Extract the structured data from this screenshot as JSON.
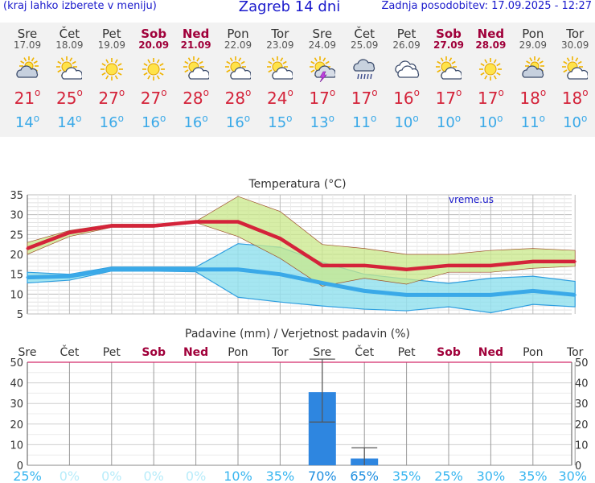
{
  "header": {
    "left_note": "(kraj lahko izberete v meniju)",
    "title": "Zagreb 14 dni",
    "updated": "Zadnja posodobitev: 17.09.2025 - 12:27"
  },
  "days": [
    {
      "name": "Sre",
      "date": "17.09",
      "weekend": false,
      "icon": "partly-cloudy-icon",
      "tmax": "21",
      "tmin": "14"
    },
    {
      "name": "Čet",
      "date": "18.09",
      "weekend": false,
      "icon": "sun-cloud-icon",
      "tmax": "25",
      "tmin": "14"
    },
    {
      "name": "Pet",
      "date": "19.09",
      "weekend": false,
      "icon": "sun-icon",
      "tmax": "27",
      "tmin": "16"
    },
    {
      "name": "Sob",
      "date": "20.09",
      "weekend": true,
      "icon": "sun-icon",
      "tmax": "27",
      "tmin": "16"
    },
    {
      "name": "Ned",
      "date": "21.09",
      "weekend": true,
      "icon": "sun-cloud-icon",
      "tmax": "28",
      "tmin": "16"
    },
    {
      "name": "Pon",
      "date": "22.09",
      "weekend": false,
      "icon": "sun-cloud-icon",
      "tmax": "28",
      "tmin": "16"
    },
    {
      "name": "Tor",
      "date": "23.09",
      "weekend": false,
      "icon": "sun-cloud-icon",
      "tmax": "24",
      "tmin": "15"
    },
    {
      "name": "Sre",
      "date": "24.09",
      "weekend": false,
      "icon": "sun-thunder-icon",
      "tmax": "17",
      "tmin": "13"
    },
    {
      "name": "Čet",
      "date": "25.09",
      "weekend": false,
      "icon": "rain-cloud-icon",
      "tmax": "17",
      "tmin": "11"
    },
    {
      "name": "Pet",
      "date": "26.09",
      "weekend": false,
      "icon": "cloud-icon",
      "tmax": "16",
      "tmin": "10"
    },
    {
      "name": "Sob",
      "date": "27.09",
      "weekend": true,
      "icon": "sun-cloud-icon",
      "tmax": "17",
      "tmin": "10"
    },
    {
      "name": "Ned",
      "date": "28.09",
      "weekend": true,
      "icon": "sun-icon",
      "tmax": "17",
      "tmin": "10"
    },
    {
      "name": "Pon",
      "date": "29.09",
      "weekend": false,
      "icon": "partly-cloudy-icon",
      "tmax": "18",
      "tmin": "11"
    },
    {
      "name": "Tor",
      "date": "30.09",
      "weekend": false,
      "icon": "sun-cloud-icon",
      "tmax": "18",
      "tmin": "10"
    }
  ],
  "colors": {
    "max_temp": "#d4233a",
    "min_temp": "#3aa9e8",
    "weekend": "#a0003a",
    "precip_bar": "#2e86e0",
    "max_band": "#c9e88a",
    "min_band": "#8fe0ee",
    "probability": "#39b6f0",
    "watermark": "#1a1acc"
  },
  "chart_data": [
    {
      "type": "line",
      "title": "Temperatura (°C)",
      "watermark": "vreme.us",
      "categories": [
        "Sre",
        "Čet",
        "Pet",
        "Sob",
        "Ned",
        "Pon",
        "Tor",
        "Sre",
        "Čet",
        "Pet",
        "Sob",
        "Ned",
        "Pon",
        "Tor"
      ],
      "ylim": [
        5,
        35
      ],
      "yticks": [
        5,
        10,
        15,
        20,
        25,
        30,
        35
      ],
      "grid": true,
      "series": [
        {
          "values": [
            21.5,
            25.5,
            27.2,
            27.2,
            28.2,
            28.2,
            24,
            17.2,
            17.2,
            16.2,
            17.2,
            17.2,
            18.2,
            18.2
          ]
        },
        {
          "values": [
            14.2,
            14.5,
            16.2,
            16.2,
            16.2,
            16.2,
            15,
            12.8,
            10.8,
            9.8,
            9.8,
            9.8,
            10.8,
            9.8
          ]
        }
      ],
      "max_band": {
        "upper": [
          23,
          26,
          27.6,
          27.6,
          28.3,
          34.6,
          30.8,
          22.5,
          21.5,
          20,
          20,
          21,
          21.5,
          21
        ],
        "lower": [
          20,
          24.5,
          26.8,
          26.8,
          28,
          24.5,
          19,
          12,
          14,
          12.5,
          15.5,
          15.5,
          16.5,
          17
        ]
      },
      "min_band": {
        "upper": [
          15.5,
          15,
          16.8,
          16.8,
          16.8,
          22.7,
          21.8,
          18,
          15,
          13.8,
          12.7,
          14,
          14.5,
          13.2
        ],
        "lower": [
          12.8,
          13.5,
          15.8,
          15.8,
          15.6,
          9.2,
          8,
          7,
          6.2,
          5.8,
          6.8,
          5.3,
          7.4,
          6.8
        ]
      }
    },
    {
      "type": "bar",
      "title": "Padavine (mm) / Verjetnost padavin (%)",
      "categories": [
        "Sre",
        "Čet",
        "Pet",
        "Sob",
        "Ned",
        "Pon",
        "Tor",
        "Sre",
        "Čet",
        "Pet",
        "Sob",
        "Ned",
        "Pon",
        "Tor"
      ],
      "ylim": [
        0,
        50
      ],
      "yticks": [
        0,
        10,
        20,
        30,
        40,
        50
      ],
      "values": [
        0,
        0,
        0,
        0,
        0,
        0,
        0,
        35.5,
        3.3,
        0,
        0,
        0,
        0,
        0
      ],
      "error_bars": [
        null,
        null,
        null,
        null,
        null,
        null,
        null,
        [
          21,
          51.5
        ],
        [
          0,
          8.5
        ],
        null,
        null,
        null,
        null,
        null
      ],
      "probability": [
        "25%",
        "0%",
        "0%",
        "0%",
        "0%",
        "10%",
        "35%",
        "70%",
        "65%",
        "35%",
        "25%",
        "30%",
        "35%",
        "30%"
      ]
    }
  ]
}
